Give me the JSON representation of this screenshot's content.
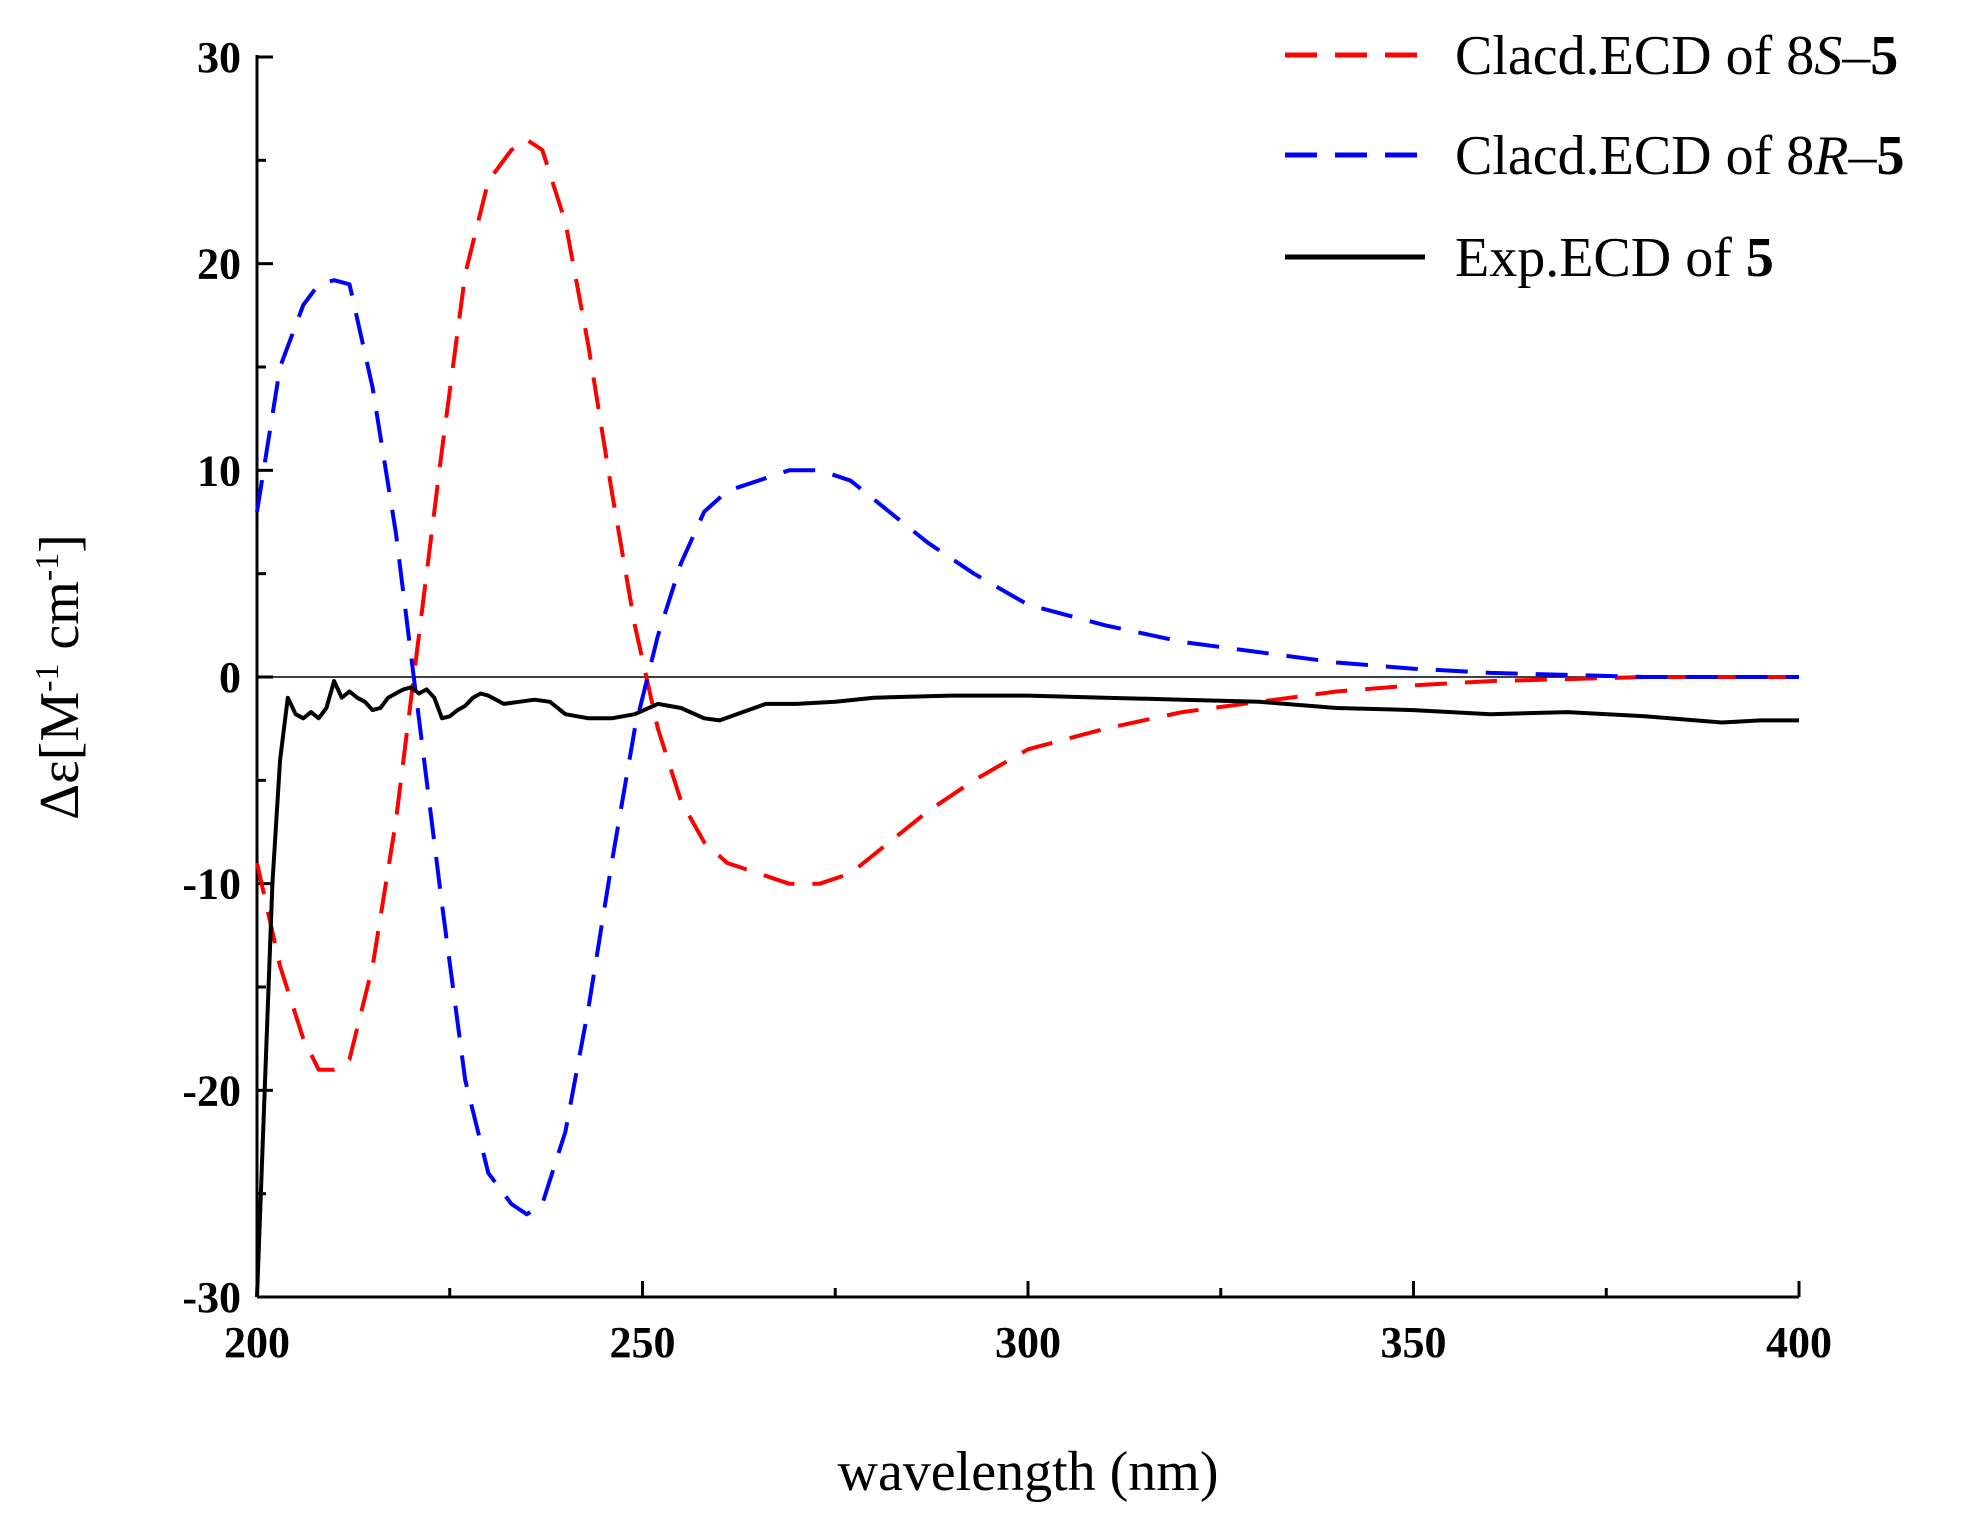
{
  "chart_data": {
    "type": "line",
    "xlabel": "wavelength (nm)",
    "ylabel_parts": [
      "Δε[M",
      "-1",
      " cm",
      "-1",
      "]"
    ],
    "xlim": [
      200,
      400
    ],
    "ylim": [
      -30,
      30
    ],
    "x_ticks": [
      200,
      250,
      300,
      350,
      400
    ],
    "y_ticks": [
      -30,
      -20,
      -10,
      0,
      10,
      20,
      30
    ],
    "legend_position": "top-right",
    "series": [
      {
        "name": "Clacd.ECD of 8S–5",
        "label_parts": [
          {
            "text": "Clacd.ECD of 8",
            "style": "normal"
          },
          {
            "text": "S",
            "style": "italic"
          },
          {
            "text": "–",
            "style": "normal"
          },
          {
            "text": "5",
            "style": "bold"
          }
        ],
        "color": "#ff0000",
        "dash": "dashed",
        "x": [
          200,
          203,
          206,
          208,
          210,
          212,
          215,
          218,
          221,
          224,
          227,
          230,
          233,
          235,
          237,
          240,
          243,
          246,
          249,
          252,
          255,
          258,
          261,
          265,
          269,
          273,
          277,
          282,
          287,
          293,
          300,
          310,
          320,
          330,
          340,
          350,
          360,
          370,
          380,
          390,
          400
        ],
        "y": [
          -9,
          -14,
          -17.5,
          -19,
          -19,
          -18.5,
          -14,
          -7,
          2,
          11,
          19.5,
          24,
          25.5,
          26,
          25.5,
          22,
          16,
          9,
          2.5,
          -2.5,
          -6,
          -8,
          -9,
          -9.5,
          -10,
          -10,
          -9.5,
          -8,
          -6.5,
          -5,
          -3.5,
          -2.5,
          -1.7,
          -1.2,
          -0.7,
          -0.4,
          -0.2,
          -0.1,
          0,
          0,
          0
        ]
      },
      {
        "name": "Clacd.ECD of 8R–5",
        "label_parts": [
          {
            "text": "Clacd.ECD of 8",
            "style": "normal"
          },
          {
            "text": "R",
            "style": "italic"
          },
          {
            "text": "–",
            "style": "normal"
          },
          {
            "text": "5",
            "style": "bold"
          }
        ],
        "color": "#0000ff",
        "dash": "dashed",
        "x": [
          200,
          203,
          206,
          208,
          210,
          212,
          215,
          218,
          221,
          224,
          227,
          230,
          233,
          235,
          237,
          240,
          243,
          246,
          249,
          252,
          255,
          258,
          261,
          265,
          269,
          273,
          277,
          282,
          287,
          293,
          300,
          310,
          320,
          330,
          340,
          350,
          360,
          370,
          380,
          390,
          400
        ],
        "y": [
          8,
          15,
          18,
          19,
          19.2,
          19,
          14,
          7,
          -2,
          -11,
          -19.5,
          -24,
          -25.5,
          -26,
          -25.5,
          -22,
          -16,
          -9,
          -2.5,
          2,
          5.5,
          8,
          9,
          9.5,
          10,
          10,
          9.5,
          8,
          6.5,
          5,
          3.5,
          2.5,
          1.7,
          1.2,
          0.7,
          0.4,
          0.2,
          0.1,
          0,
          0,
          0
        ]
      },
      {
        "name": "Exp.ECD of 5",
        "label_parts": [
          {
            "text": "Exp.ECD of ",
            "style": "normal"
          },
          {
            "text": "5",
            "style": "bold"
          }
        ],
        "color": "#000000",
        "dash": "solid",
        "x": [
          200,
          201,
          202,
          203,
          204,
          205,
          206,
          207,
          208,
          209,
          210,
          211,
          212,
          213,
          214,
          215,
          216,
          217,
          218,
          219,
          220,
          221,
          222,
          223,
          224,
          225,
          226,
          227,
          228,
          229,
          230,
          232,
          234,
          236,
          238,
          240,
          243,
          246,
          249,
          252,
          255,
          258,
          260,
          263,
          266,
          270,
          275,
          280,
          290,
          300,
          310,
          320,
          330,
          340,
          350,
          360,
          370,
          380,
          390,
          395,
          400
        ],
        "y": [
          -30,
          -20,
          -10,
          -4,
          -1,
          -1.8,
          -2,
          -1.7,
          -2,
          -1.5,
          -0.2,
          -1,
          -0.7,
          -1,
          -1.2,
          -1.6,
          -1.5,
          -1,
          -0.8,
          -0.6,
          -0.5,
          -0.8,
          -0.6,
          -1,
          -2,
          -1.9,
          -1.6,
          -1.4,
          -1,
          -0.8,
          -0.9,
          -1.3,
          -1.2,
          -1.1,
          -1.2,
          -1.8,
          -2,
          -2,
          -1.8,
          -1.3,
          -1.5,
          -2,
          -2.1,
          -1.7,
          -1.3,
          -1.3,
          -1.2,
          -1,
          -0.9,
          -0.9,
          -1,
          -1.1,
          -1.2,
          -1.5,
          -1.6,
          -1.8,
          -1.7,
          -1.9,
          -2.2,
          -2.1,
          -2.1
        ]
      }
    ]
  }
}
